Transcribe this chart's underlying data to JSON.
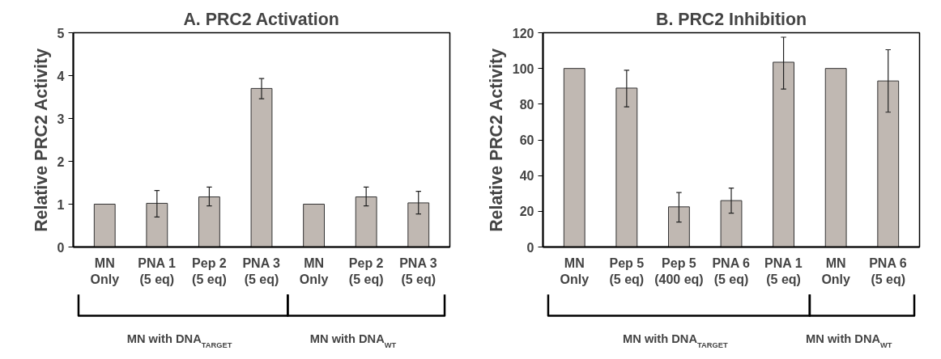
{
  "chart_data": [
    {
      "type": "bar",
      "title": "A. PRC2 Activation",
      "ylabel": "Relative PRC2 Activity",
      "categories": [
        "MN\nOnly",
        "PNA 1\n(5 eq)",
        "Pep 2\n(5 eq)",
        "PNA 3\n(5 eq)",
        "MN\nOnly",
        "Pep 2\n(5 eq)",
        "PNA 3\n(5 eq)"
      ],
      "values": [
        1,
        1.02,
        1.17,
        3.7,
        1,
        1.17,
        1.03
      ],
      "errors": [
        null,
        [
          0.7,
          1.32
        ],
        [
          0.96,
          1.4
        ],
        [
          3.46,
          3.93
        ],
        null,
        [
          0.96,
          1.4
        ],
        [
          0.77,
          1.3
        ]
      ],
      "color": "#c0b8b2",
      "ylim": [
        0,
        5
      ],
      "yticks": [
        0,
        1,
        2,
        3,
        4,
        5
      ],
      "grid": false,
      "annotations": [
        "MN with DNA$_{TARGET}$",
        "MN with DNA$_{WT}$"
      ]
    },
    {
      "type": "bar",
      "title": "B. PRC2 Inhibition",
      "ylabel": "Relative PRC2 Activity",
      "categories": [
        "MN\nOnly",
        "Pep 5\n(5 eq)",
        "Pep 5\n(400 eq)",
        "PNA 6\n(5 eq)",
        "PNA 1\n(5 eq)",
        "MN\nOnly",
        "PNA 6\n(5 eq)"
      ],
      "values": [
        100,
        89,
        22.5,
        26,
        103.5,
        100,
        93
      ],
      "errors": [
        null,
        [
          78.5,
          99
        ],
        [
          14,
          30.5
        ],
        [
          19,
          33
        ],
        [
          88.5,
          117.5
        ],
        null,
        [
          75.5,
          110.5
        ]
      ],
      "color": "#c0b8b2",
      "ylim": [
        0,
        120
      ],
      "yticks": [
        0,
        20,
        40,
        60,
        80,
        100,
        120
      ],
      "grid": false,
      "annotations": [
        "MN with DNA$_{TARGET}$",
        "MN with DNA$_{WT}$"
      ]
    }
  ]
}
